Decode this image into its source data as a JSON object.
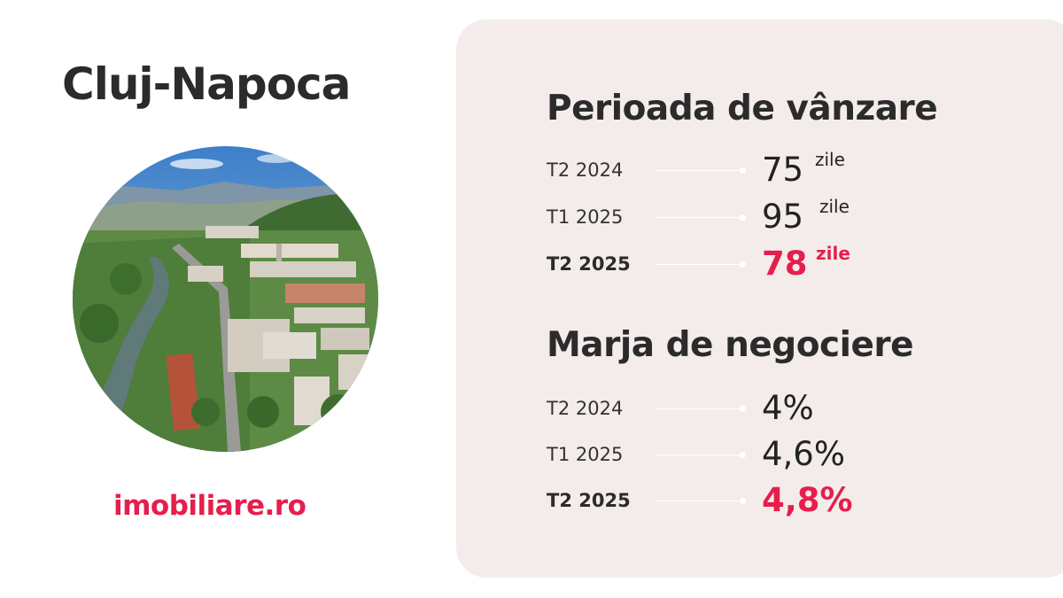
{
  "city": "Cluj-Napoca",
  "logo": {
    "text": "imobiliare.ro",
    "color": "#e61e4d"
  },
  "accent_color": "#e61e4d",
  "panel_color": "#f4eceb",
  "sales_period": {
    "title": "Perioada de vânzare",
    "rows": [
      {
        "period": "T2 2024",
        "value": "75",
        "unit": "zile"
      },
      {
        "period": "T1 2025",
        "value": "95",
        "unit": "zile"
      },
      {
        "period": "T2 2025",
        "value": "78",
        "unit": "zile"
      }
    ]
  },
  "negotiation_margin": {
    "title": "Marja de negociere",
    "rows": [
      {
        "period": "T2 2024",
        "value": "4%"
      },
      {
        "period": "T1 2025",
        "value": "4,6%"
      },
      {
        "period": "T2 2025",
        "value": "4,8%"
      }
    ]
  }
}
